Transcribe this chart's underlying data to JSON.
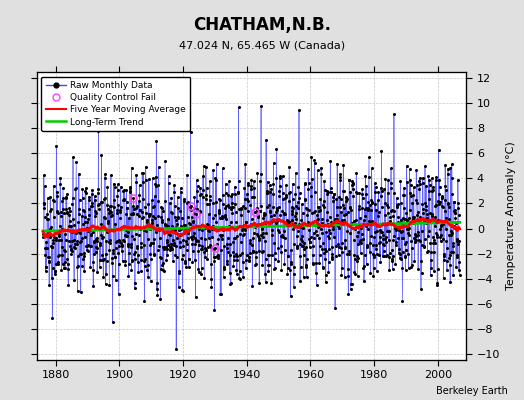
{
  "title": "CHATHAM,N.B.",
  "subtitle": "47.024 N, 65.465 W (Canada)",
  "ylabel": "Temperature Anomaly (°C)",
  "xlim": [
    1874,
    2009
  ],
  "ylim": [
    -10.5,
    12.5
  ],
  "yticks": [
    -10,
    -8,
    -6,
    -4,
    -2,
    0,
    2,
    4,
    6,
    8,
    10,
    12
  ],
  "xticks": [
    1880,
    1900,
    1920,
    1940,
    1960,
    1980,
    2000
  ],
  "start_year": 1876,
  "end_year": 2007,
  "seed": 42,
  "raw_line_color": "#4444ff",
  "raw_dot_color": "#000000",
  "moving_avg_color": "#ff0000",
  "trend_color": "#00cc00",
  "qc_fail_color": "#ff44ff",
  "background_color": "#e0e0e0",
  "plot_bg_color": "#ffffff",
  "grid_color": "#b0b0b0",
  "attribution": "Berkeley Earth",
  "legend_labels": [
    "Raw Monthly Data",
    "Quality Control Fail",
    "Five Year Moving Average",
    "Long-Term Trend"
  ]
}
